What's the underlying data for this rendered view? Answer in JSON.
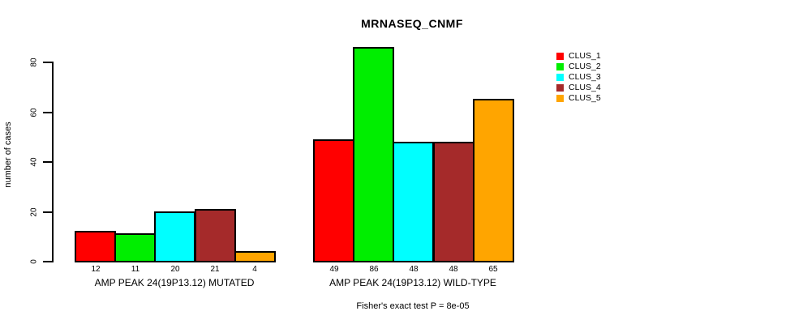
{
  "chart_data": {
    "type": "bar",
    "title": "MRNASEQ_CNMF",
    "ylabel": "number of cases",
    "xlabel": "",
    "footnote": "Fisher's exact test P = 8e-05",
    "yticks": [
      0,
      20,
      40,
      60,
      80
    ],
    "ylim": [
      0,
      86
    ],
    "grid": false,
    "legend_position": "right",
    "categories": [
      "AMP PEAK 24(19P13.12) MUTATED",
      "AMP PEAK 24(19P13.12) WILD-TYPE"
    ],
    "series": [
      {
        "name": "CLUS_1",
        "color": "#ff0000",
        "values": [
          12,
          49
        ]
      },
      {
        "name": "CLUS_2",
        "color": "#00ee00",
        "values": [
          11,
          86
        ]
      },
      {
        "name": "CLUS_3",
        "color": "#00ffff",
        "values": [
          20,
          48
        ]
      },
      {
        "name": "CLUS_4",
        "color": "#a52a2a",
        "values": [
          21,
          48
        ]
      },
      {
        "name": "CLUS_5",
        "color": "#ffa500",
        "values": [
          4,
          65
        ]
      }
    ],
    "bar_value_labels_shown": true
  }
}
